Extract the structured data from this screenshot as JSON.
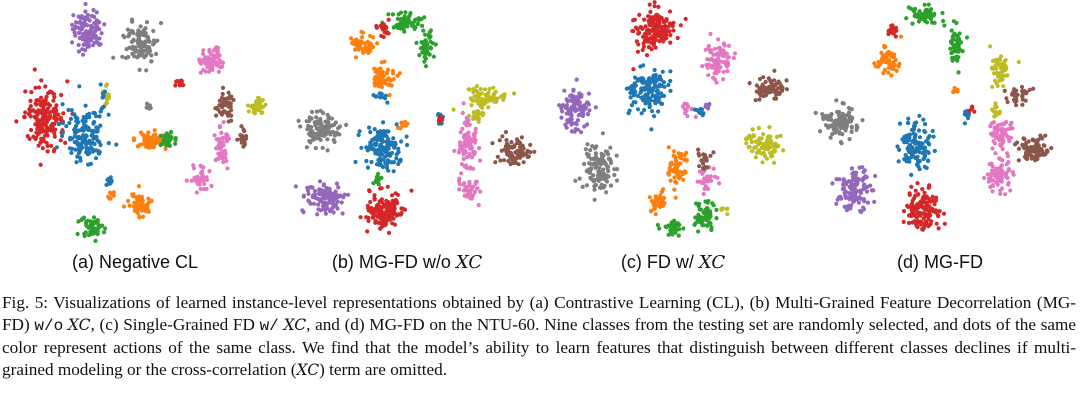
{
  "colors": {
    "blue": "#1f77b4",
    "orange": "#ff7f0e",
    "green": "#2ca02c",
    "red": "#d62728",
    "purple": "#9467bd",
    "brown": "#8c564b",
    "pink": "#e377c2",
    "gray": "#7f7f7f",
    "olive": "#bcbd22"
  },
  "panels": [
    {
      "label_prefix": "(a) Negative CL",
      "label_math": ""
    },
    {
      "label_prefix": "(b) MG-FD w/o ",
      "label_math": "XC"
    },
    {
      "label_prefix": "(c) FD w/ ",
      "label_math": "XC"
    },
    {
      "label_prefix": "(d) MG-FD",
      "label_math": ""
    }
  ],
  "caption": {
    "t1": "Fig. 5: Visualizations of learned instance-level representations obtained by (a) Contrastive Learning (CL), (b) Multi-Grained Feature Decorrelation (MG-FD) ",
    "m1": "w/o",
    "m2": "XC",
    "t2": ", (c) Single-Grained FD ",
    "m3": "w/",
    "m4": "XC",
    "t3": ", and (d) MG-FD on the NTU-60. Nine classes from the testing set are randomly selected, and dots of the same color represent actions of the same class. We find that the model’s ability to learn features that distinguish between different classes declines if multi-grained modeling or the cross-correlation (",
    "m5": "XC",
    "t4": ") term are omitted."
  }
}
